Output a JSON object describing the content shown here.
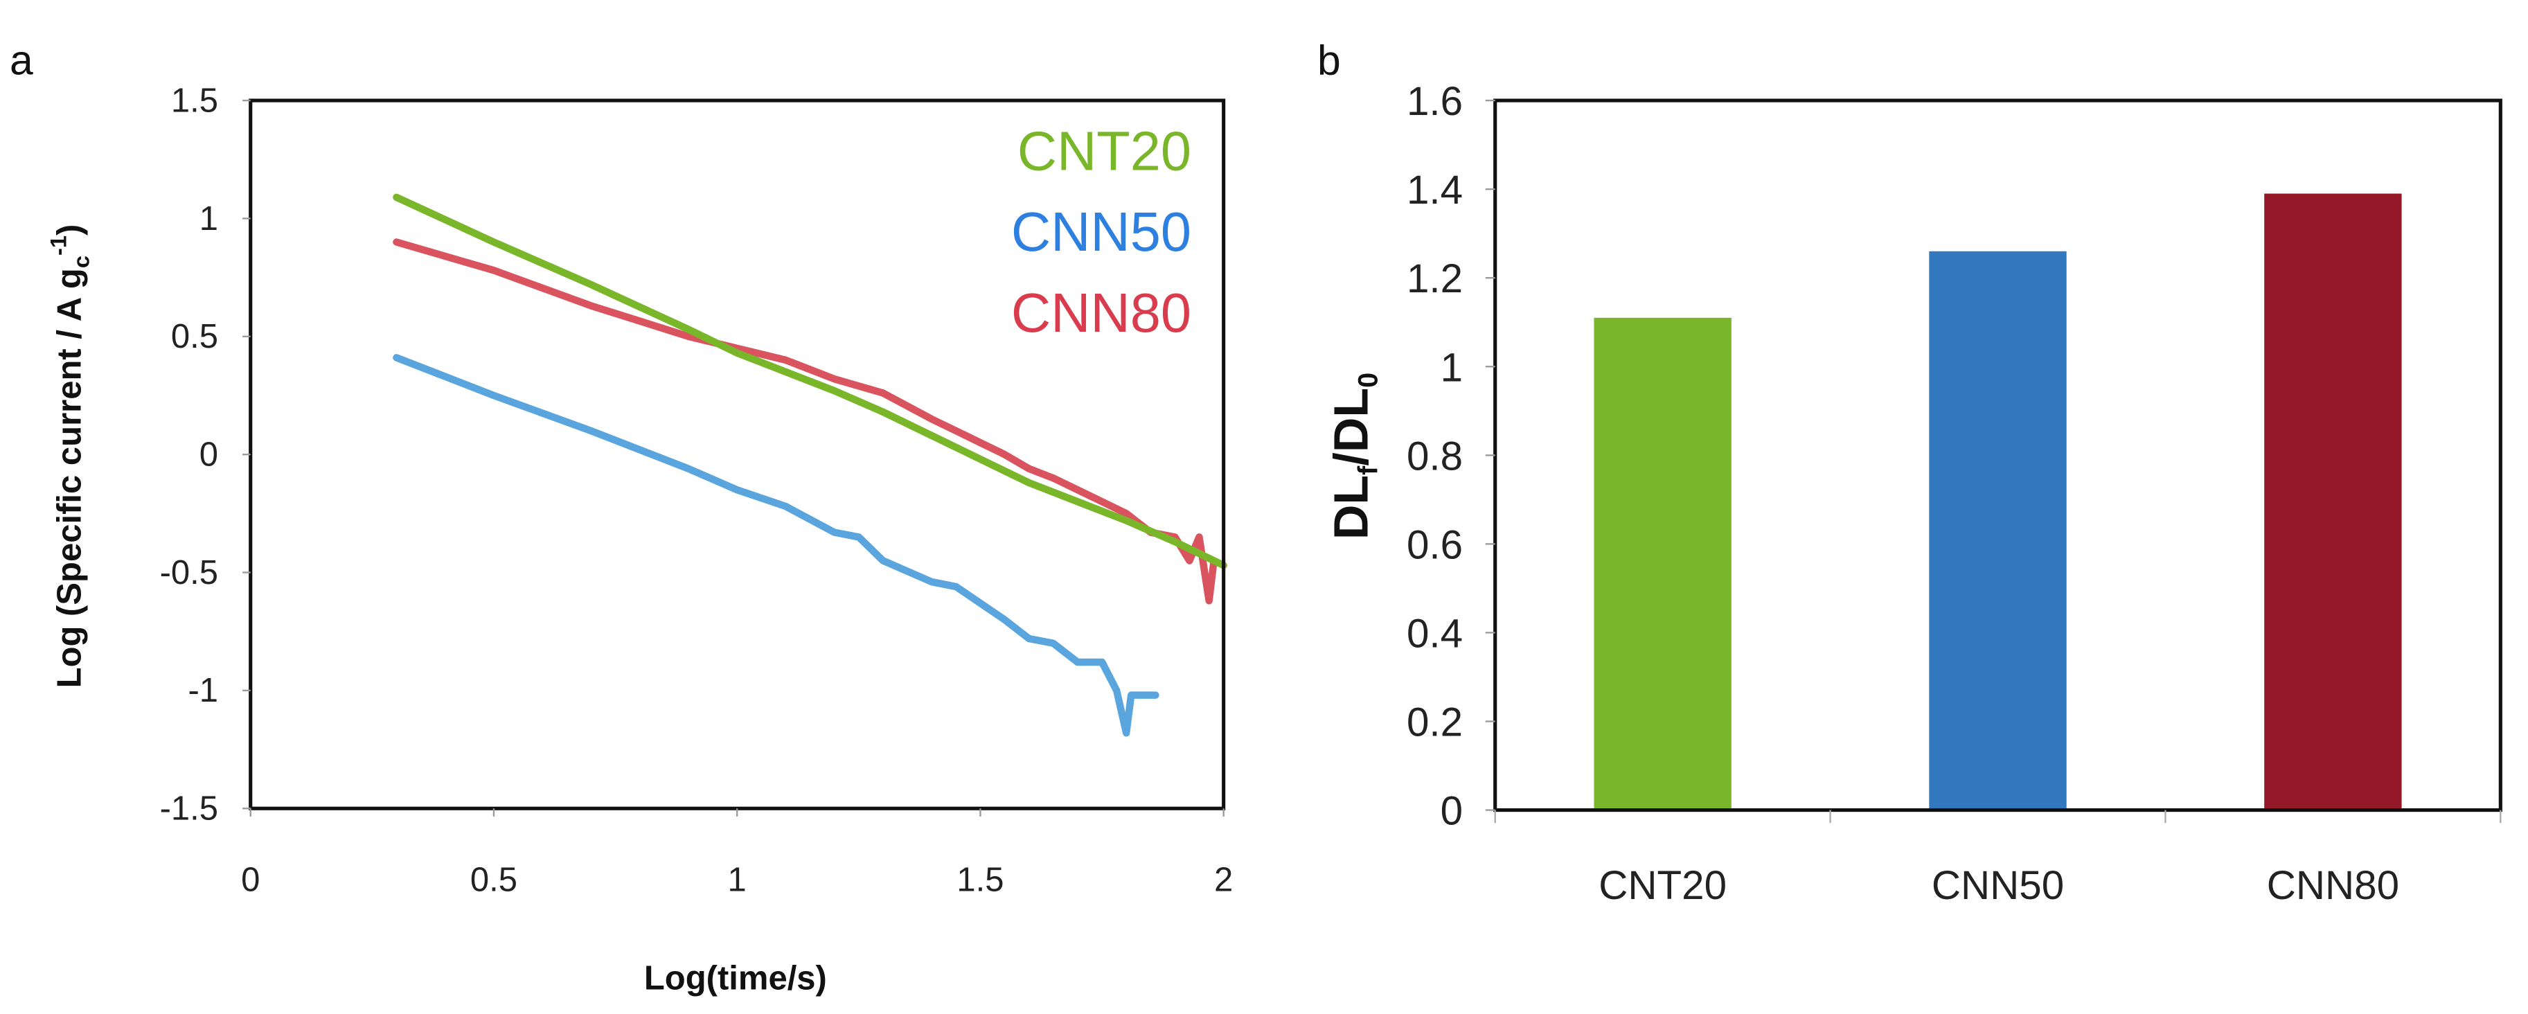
{
  "chart_data": [
    {
      "panel_label": "a",
      "type": "line",
      "xlabel": "Log(time/s)",
      "ylabel": "Log (Specific current  / A g",
      "ylabel_sub": "c",
      "ylabel_sup": "-1",
      "ylabel_close": ")",
      "xlim": [
        0,
        2
      ],
      "ylim": [
        -1.5,
        1.5
      ],
      "xticks": [
        "0",
        "0.5",
        "1",
        "1.5",
        "2"
      ],
      "yticks": [
        "-1.5",
        "-1",
        "-0.5",
        "0",
        "0.5",
        "1",
        "1.5"
      ],
      "legend_position": "top-right",
      "series": [
        {
          "name": "CNT20",
          "color": "#7ab62a",
          "text_color": "#7ab62a",
          "x": [
            0.3,
            0.5,
            0.7,
            0.9,
            1.0,
            1.1,
            1.2,
            1.3,
            1.4,
            1.5,
            1.6,
            1.7,
            1.8,
            1.9,
            2.0
          ],
          "y": [
            1.09,
            0.9,
            0.72,
            0.53,
            0.43,
            0.35,
            0.27,
            0.18,
            0.08,
            -0.02,
            -0.12,
            -0.2,
            -0.28,
            -0.37,
            -0.47
          ]
        },
        {
          "name": "CNN50",
          "color": "#5aa5de",
          "text_color": "#2d7fe0",
          "x": [
            0.3,
            0.5,
            0.7,
            0.9,
            1.0,
            1.1,
            1.2,
            1.25,
            1.3,
            1.4,
            1.45,
            1.5,
            1.55,
            1.6,
            1.65,
            1.7,
            1.75,
            1.78,
            1.8,
            1.81,
            1.83,
            1.86
          ],
          "y": [
            0.41,
            0.25,
            0.1,
            -0.06,
            -0.15,
            -0.22,
            -0.33,
            -0.35,
            -0.45,
            -0.54,
            -0.56,
            -0.63,
            -0.7,
            -0.78,
            -0.8,
            -0.88,
            -0.88,
            -1.0,
            -1.18,
            -1.02,
            -1.02,
            -1.02
          ]
        },
        {
          "name": "CNN80",
          "color": "#d9545f",
          "text_color": "#d93c4c",
          "x": [
            0.3,
            0.5,
            0.7,
            0.9,
            1.0,
            1.1,
            1.2,
            1.3,
            1.4,
            1.45,
            1.5,
            1.55,
            1.6,
            1.65,
            1.7,
            1.75,
            1.8,
            1.85,
            1.9,
            1.93,
            1.95,
            1.97,
            1.98
          ],
          "y": [
            0.9,
            0.78,
            0.63,
            0.5,
            0.45,
            0.4,
            0.32,
            0.26,
            0.15,
            0.1,
            0.05,
            0.0,
            -0.06,
            -0.1,
            -0.15,
            -0.2,
            -0.25,
            -0.33,
            -0.35,
            -0.45,
            -0.35,
            -0.62,
            -0.45
          ]
        }
      ]
    },
    {
      "panel_label": "b",
      "type": "bar",
      "ylabel": "DL",
      "ylabel_sub1": "f",
      "ylabel_mid": "/DL",
      "ylabel_sub2": "0",
      "xlabel": "",
      "ylim": [
        0,
        1.6
      ],
      "yticks": [
        "0",
        "0.2",
        "0.4",
        "0.6",
        "0.8",
        "1",
        "1.2",
        "1.4",
        "1.6"
      ],
      "categories": [
        "CNT20",
        "CNN50",
        "CNN80"
      ],
      "values": [
        1.11,
        1.26,
        1.39
      ],
      "colors": [
        "#7ab62a",
        "#3278be",
        "#951828"
      ]
    }
  ]
}
